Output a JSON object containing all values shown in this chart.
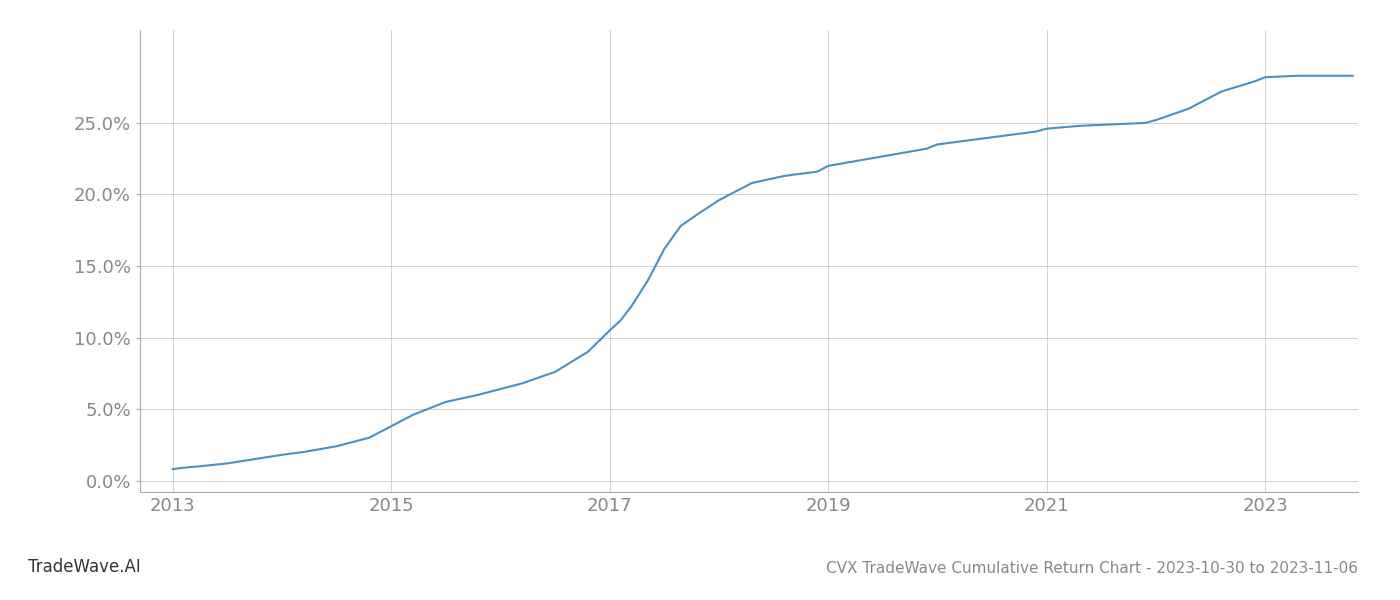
{
  "title": "CVX TradeWave Cumulative Return Chart - 2023-10-30 to 2023-11-06",
  "watermark": "TradeWave.AI",
  "line_color": "#4a90c4",
  "line_width": 1.5,
  "background_color": "#ffffff",
  "grid_color": "#cccccc",
  "x_values": [
    2013.0,
    2013.1,
    2013.25,
    2013.5,
    2013.75,
    2014.0,
    2014.2,
    2014.5,
    2014.8,
    2015.0,
    2015.2,
    2015.5,
    2015.8,
    2016.0,
    2016.2,
    2016.5,
    2016.8,
    2017.0,
    2017.1,
    2017.2,
    2017.35,
    2017.5,
    2017.65,
    2017.8,
    2018.0,
    2018.3,
    2018.6,
    2018.9,
    2019.0,
    2019.3,
    2019.6,
    2019.9,
    2020.0,
    2020.3,
    2020.6,
    2020.9,
    2021.0,
    2021.3,
    2021.6,
    2021.9,
    2022.0,
    2022.3,
    2022.6,
    2022.9,
    2023.0,
    2023.3,
    2023.6,
    2023.8
  ],
  "y_values": [
    0.008,
    0.009,
    0.01,
    0.012,
    0.015,
    0.018,
    0.02,
    0.024,
    0.03,
    0.038,
    0.046,
    0.055,
    0.06,
    0.064,
    0.068,
    0.076,
    0.09,
    0.105,
    0.112,
    0.122,
    0.14,
    0.162,
    0.178,
    0.186,
    0.196,
    0.208,
    0.213,
    0.216,
    0.22,
    0.224,
    0.228,
    0.232,
    0.235,
    0.238,
    0.241,
    0.244,
    0.246,
    0.248,
    0.249,
    0.25,
    0.252,
    0.26,
    0.272,
    0.279,
    0.282,
    0.283,
    0.283,
    0.283
  ],
  "xticks": [
    2013,
    2015,
    2017,
    2019,
    2021,
    2023
  ],
  "yticks": [
    0.0,
    0.05,
    0.1,
    0.15,
    0.2,
    0.25
  ],
  "xlim": [
    2012.7,
    2023.85
  ],
  "ylim": [
    -0.008,
    0.315
  ],
  "tick_label_color": "#888888",
  "tick_label_fontsize": 13,
  "title_fontsize": 11,
  "watermark_fontsize": 12,
  "spine_color": "#aaaaaa"
}
